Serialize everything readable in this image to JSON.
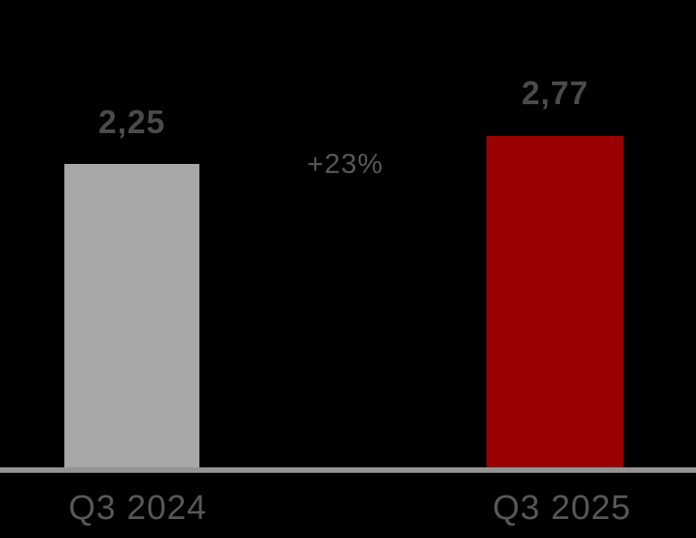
{
  "chart_data": {
    "type": "bar",
    "categories": [
      "Q3 2024",
      "Q3 2025"
    ],
    "values": [
      2.25,
      2.77
    ],
    "value_labels": [
      "2,25",
      "2,77"
    ],
    "annotation": "+23%",
    "title": "",
    "xlabel": "",
    "ylabel": "",
    "grid": false,
    "legend_position": "none",
    "background_color": "#000000",
    "series": [
      {
        "name": "Q3 2024",
        "value": 2.25,
        "label": "2,25",
        "color": "#a7a7a7"
      },
      {
        "name": "Q3 2025",
        "value": 2.77,
        "label": "2,77",
        "color": "#9a0000"
      }
    ]
  },
  "chart": {
    "bars": [
      {
        "value_label": "2,25",
        "category": "Q3 2024",
        "color": "#a7a7a7"
      },
      {
        "value_label": "2,77",
        "category": "Q3 2025",
        "color": "#9a0000"
      }
    ],
    "delta_label": "+23%",
    "colors": {
      "background": "#000000",
      "axis_line": "#949494",
      "value_label_text": "#4a4a4a",
      "delta_text": "#565656",
      "x_label_text": "#575757"
    }
  }
}
